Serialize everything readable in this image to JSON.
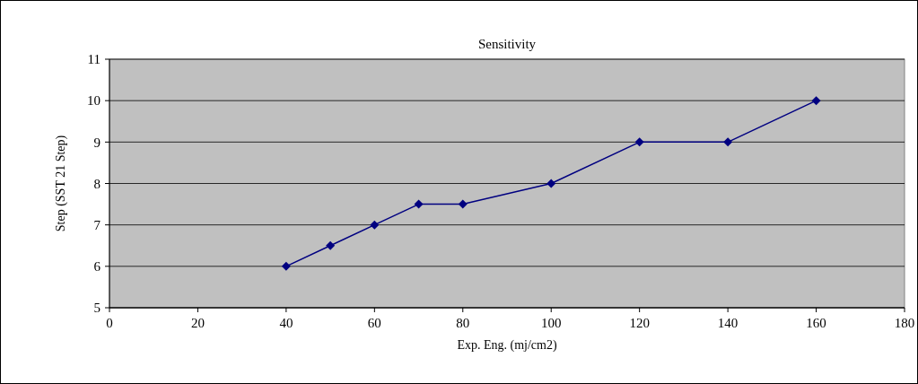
{
  "chart_data": {
    "type": "line",
    "title": "Sensitivity",
    "xlabel": "Exp. Eng. (mj/cm2)",
    "ylabel": "Step (SST 21 Step)",
    "x": [
      40,
      50,
      60,
      70,
      80,
      100,
      120,
      140,
      160
    ],
    "series": [
      {
        "color": "#000080",
        "values": [
          6,
          6.5,
          7,
          7.5,
          7.5,
          8,
          9,
          9,
          10
        ]
      }
    ],
    "xlim": [
      0,
      180
    ],
    "xticks": [
      0,
      20,
      40,
      60,
      80,
      100,
      120,
      140,
      160,
      180
    ],
    "ylim": [
      5,
      11
    ],
    "yticks": [
      5,
      6,
      7,
      8,
      9,
      10,
      11
    ],
    "grid": "y",
    "marker": "diamond",
    "line_style": "solid"
  }
}
